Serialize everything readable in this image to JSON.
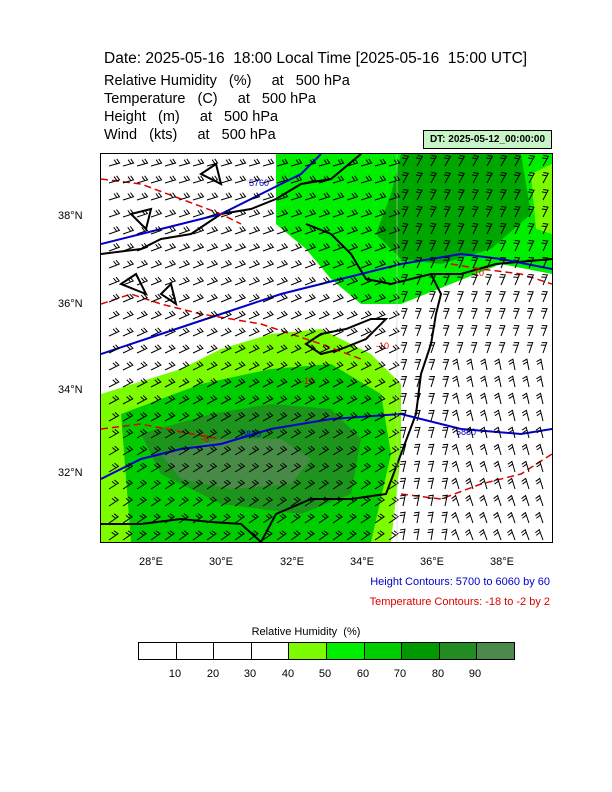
{
  "title": "Date: 2025-05-16  18:00 Local Time [2025-05-16  15:00 UTC]",
  "header_lines": [
    "Relative Humidity   (%)     at   500 hPa",
    "Temperature   (C)     at   500 hPa",
    "Height   (m)     at   500 hPa",
    "Wind   (kts)     at   500 hPa"
  ],
  "dt_badge": "DT: 2025-05-12_00:00:00",
  "map": {
    "lon_range": [
      26.7,
      39.5
    ],
    "lat_range": [
      30.45,
      39.8
    ],
    "x_ticks": [
      "28°E",
      "30°E",
      "32°E",
      "34°E",
      "36°E",
      "38°E"
    ],
    "y_ticks": [
      "38°N",
      "36°N",
      "34°N",
      "32°N"
    ],
    "height_contour_labels": [
      "5760",
      "5880",
      "5880"
    ],
    "temperature_contour_labels": [
      "-10",
      "-10",
      "-10",
      "-8"
    ],
    "colors": {
      "height_contour": "#0000cc",
      "temperature_contour": "#dd0000",
      "coastline": "#000000",
      "wind_barb": "#000000"
    }
  },
  "notes": {
    "height": "Height Contours: 5700 to 6060 by 60",
    "temperature": "Temperature Contours: -18 to -2 by 2"
  },
  "colorbar": {
    "title": "Relative Humidity  (%)",
    "labels": [
      "10",
      "20",
      "30",
      "40",
      "50",
      "60",
      "70",
      "80",
      "90"
    ],
    "colors": [
      "#ffffff",
      "#ffffff",
      "#ffffff",
      "#ffffff",
      "#7cfc00",
      "#00ee00",
      "#00cd00",
      "#009900",
      "#228b22",
      "#4c8a4c"
    ]
  }
}
